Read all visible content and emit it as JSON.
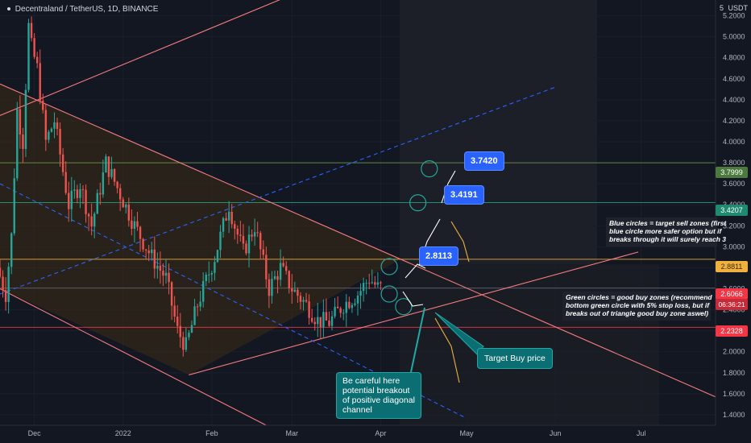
{
  "header": {
    "symbol": "Decentraland / TetherUS, 1D, BINANCE"
  },
  "price_axis": {
    "currency": "USDT",
    "top_tick": "5",
    "labels": [
      {
        "text": "3.7999",
        "value": 3.7999,
        "color": "#4c7a3e"
      },
      {
        "text": "3.4207",
        "value": 3.4207,
        "color": "#1f8a70"
      },
      {
        "text": "2.8811",
        "value": 2.8811,
        "color": "#f0b040"
      },
      {
        "text": "2.6066",
        "value": 2.6066,
        "color": "#f23645"
      },
      {
        "text": "2.2328",
        "value": 2.2328,
        "color": "#f23645"
      }
    ],
    "countdown": "06:36:21"
  },
  "annotations": {
    "sell_note": "Blue circles = target sell zones (first\nblue circle more safer option but if\nbreaks through it will surely reach 3",
    "buy_note": "Green circles = good buy zones (recommend\nbottom green circle with 5% stop loss, but if\nbreaks out of triangle good buy zone aswel)",
    "target_buy": "Target Buy price",
    "breakout_warning": "Be careful here\npotential breakout\nof positive diagonal\nchannel",
    "target_1": "2.8113",
    "target_2": "3.4191",
    "target_3": "3.7420"
  },
  "colors": {
    "background": "#131722",
    "up": "#26a69a",
    "down": "#ef5350",
    "channel": "#f77c80",
    "dashed": "#2962ff",
    "triangle_fill": "#3d2b14"
  },
  "chart_data": {
    "type": "candlestick",
    "title": "Decentraland / TetherUS, 1D, BINANCE",
    "ylabel": "USDT",
    "ylim": [
      1.3,
      5.35
    ],
    "y_ticks": [
      5.2,
      5.0,
      4.8,
      4.6,
      4.4,
      4.2,
      4.0,
      3.8,
      3.6,
      3.4,
      3.2,
      3.0,
      2.8,
      2.6,
      2.4,
      2.2,
      2.0,
      1.8,
      1.6,
      1.4
    ],
    "x_ticks": [
      "Dec",
      "2022",
      "Feb",
      "Mar",
      "Apr",
      "May",
      "Jun",
      "Jul"
    ],
    "x_start": "2021-11-19",
    "x_end": "2022-07-27",
    "last_price": 2.6066,
    "horizontal_levels": [
      3.7999,
      3.4207,
      2.8811,
      2.6066,
      2.2328
    ],
    "anchors": [
      {
        "date": "2021-11-19",
        "price": 2.8
      },
      {
        "date": "2021-11-22",
        "price": 2.55
      },
      {
        "date": "2021-11-24",
        "price": 3.1
      },
      {
        "date": "2021-11-26",
        "price": 4.3
      },
      {
        "date": "2021-11-28",
        "price": 4.0
      },
      {
        "date": "2021-11-30",
        "price": 5.1
      },
      {
        "date": "2021-12-01",
        "price": 4.9
      },
      {
        "date": "2021-12-03",
        "price": 4.7
      },
      {
        "date": "2021-12-06",
        "price": 4.0
      },
      {
        "date": "2021-12-09",
        "price": 4.2
      },
      {
        "date": "2021-12-14",
        "price": 3.4
      },
      {
        "date": "2021-12-18",
        "price": 3.6
      },
      {
        "date": "2021-12-22",
        "price": 3.2
      },
      {
        "date": "2021-12-27",
        "price": 3.8
      },
      {
        "date": "2022-01-01",
        "price": 3.5
      },
      {
        "date": "2022-01-06",
        "price": 3.2
      },
      {
        "date": "2022-01-12",
        "price": 2.9
      },
      {
        "date": "2022-01-17",
        "price": 2.7
      },
      {
        "date": "2022-01-21",
        "price": 2.2
      },
      {
        "date": "2022-01-24",
        "price": 2.05
      },
      {
        "date": "2022-01-28",
        "price": 2.45
      },
      {
        "date": "2022-02-03",
        "price": 2.9
      },
      {
        "date": "2022-02-08",
        "price": 3.4
      },
      {
        "date": "2022-02-10",
        "price": 3.2
      },
      {
        "date": "2022-02-13",
        "price": 2.95
      },
      {
        "date": "2022-02-17",
        "price": 3.2
      },
      {
        "date": "2022-02-22",
        "price": 2.6
      },
      {
        "date": "2022-02-26",
        "price": 2.8
      },
      {
        "date": "2022-03-02",
        "price": 2.6
      },
      {
        "date": "2022-03-07",
        "price": 2.45
      },
      {
        "date": "2022-03-11",
        "price": 2.3
      },
      {
        "date": "2022-03-15",
        "price": 2.28
      },
      {
        "date": "2022-03-20",
        "price": 2.45
      },
      {
        "date": "2022-03-25",
        "price": 2.55
      },
      {
        "date": "2022-03-29",
        "price": 2.7
      },
      {
        "date": "2022-04-01",
        "price": 2.61
      }
    ],
    "trendlines": [
      {
        "name": "upper-channel",
        "style": "solid",
        "from": {
          "date": "2021-11-19",
          "price": 4.25
        },
        "to": {
          "date": "2022-04-01",
          "price": 5.75
        }
      },
      {
        "name": "descending-resistance",
        "style": "solid",
        "from": {
          "date": "2021-11-19",
          "price": 4.55
        },
        "to": {
          "date": "2022-07-27",
          "price": 1.57
        }
      },
      {
        "name": "ascending-support",
        "style": "solid",
        "from": {
          "date": "2022-01-24",
          "price": 1.78
        },
        "to": {
          "date": "2022-06-30",
          "price": 2.95
        }
      },
      {
        "name": "lower-channel",
        "style": "solid",
        "from": {
          "date": "2021-11-19",
          "price": 2.6
        },
        "to": {
          "date": "2022-02-20",
          "price": 1.3
        }
      },
      {
        "name": "mid-channel",
        "style": "dashed",
        "from": {
          "date": "2021-11-19",
          "price": 2.55
        },
        "to": {
          "date": "2022-06-01",
          "price": 4.52
        }
      },
      {
        "name": "lower-dashed",
        "style": "dashed",
        "from": {
          "date": "2021-11-19",
          "price": 3.6
        },
        "to": {
          "date": "2022-04-30",
          "price": 1.38
        }
      }
    ],
    "target_points": [
      {
        "label": "2.8113",
        "date": "2022-04-04",
        "price": 2.8113
      },
      {
        "label": "3.4191",
        "date": "2022-04-14",
        "price": 3.4191
      },
      {
        "label": "3.7420",
        "date": "2022-04-18",
        "price": 3.742
      },
      {
        "label": "buy",
        "date": "2022-04-09",
        "price": 2.43
      },
      {
        "label": "buy-low",
        "date": "2022-04-04",
        "price": 2.55
      }
    ]
  }
}
